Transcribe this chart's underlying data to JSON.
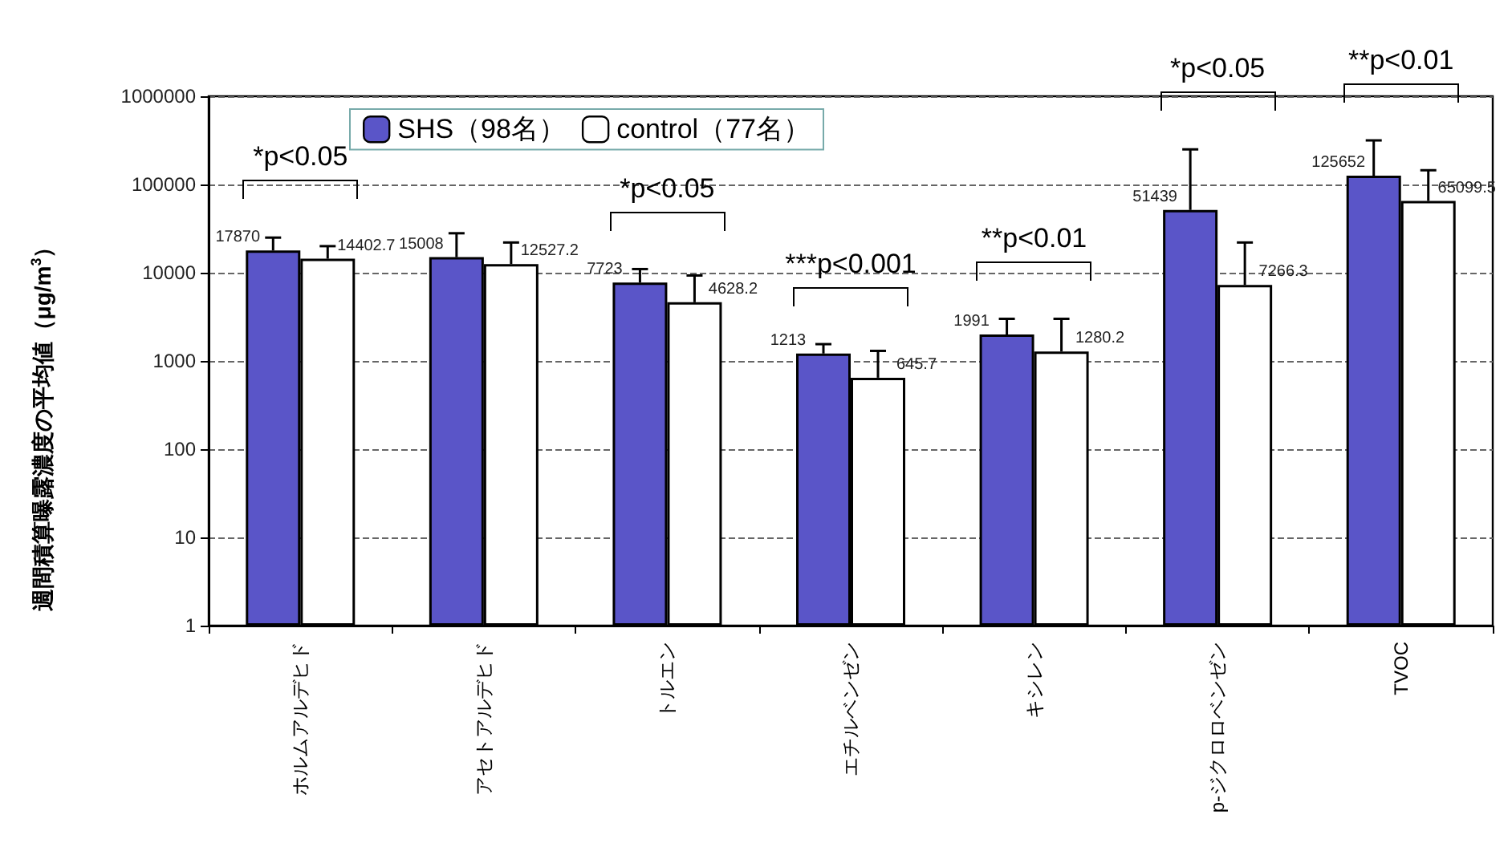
{
  "chart_data": {
    "type": "bar",
    "ylabel": "週間積算曝露濃度の平均値（μg/m$^{3}$）",
    "categories": [
      "ホルムアルデヒド",
      "アセトアルデヒド",
      "トルエン",
      "エチルベンゼン",
      "キシレン",
      "p-ジクロロベンゼン",
      "TVOC"
    ],
    "series": [
      {
        "name": "SHS（98名）",
        "color": "#5a55c8",
        "values": [
          17870,
          15008,
          7723,
          1213,
          1991,
          51439,
          125652
        ],
        "errors": [
          [
            17870,
            25000
          ],
          [
            15008,
            28000
          ],
          [
            7723,
            11000
          ],
          [
            1213,
            1550
          ],
          [
            1991,
            3000
          ],
          [
            51439,
            250000
          ],
          [
            125652,
            316000
          ]
        ]
      },
      {
        "name": "control（77名）",
        "color": "#ffffff",
        "values": [
          14402.7,
          12527.2,
          4628.2,
          645.7,
          1280.2,
          7266.3,
          65099.5
        ],
        "errors": [
          [
            14402.7,
            20000
          ],
          [
            12527.2,
            22000
          ],
          [
            4628.2,
            9300
          ],
          [
            645.7,
            1300
          ],
          [
            1280.2,
            3000
          ],
          [
            7266.3,
            22000
          ],
          [
            65099.5,
            145000
          ]
        ]
      }
    ],
    "log": true,
    "ylim": [
      1,
      1000000
    ],
    "yticks": [
      1,
      10,
      100,
      1000,
      10000,
      100000,
      1000000
    ],
    "grid": "y",
    "legend": "top left",
    "data_labels": true,
    "annotations": [
      "*p<0.05",
      "*p<0.05",
      "***p<0.001",
      "**p<0.01",
      "*p<0.05",
      "**p<0.01"
    ]
  }
}
